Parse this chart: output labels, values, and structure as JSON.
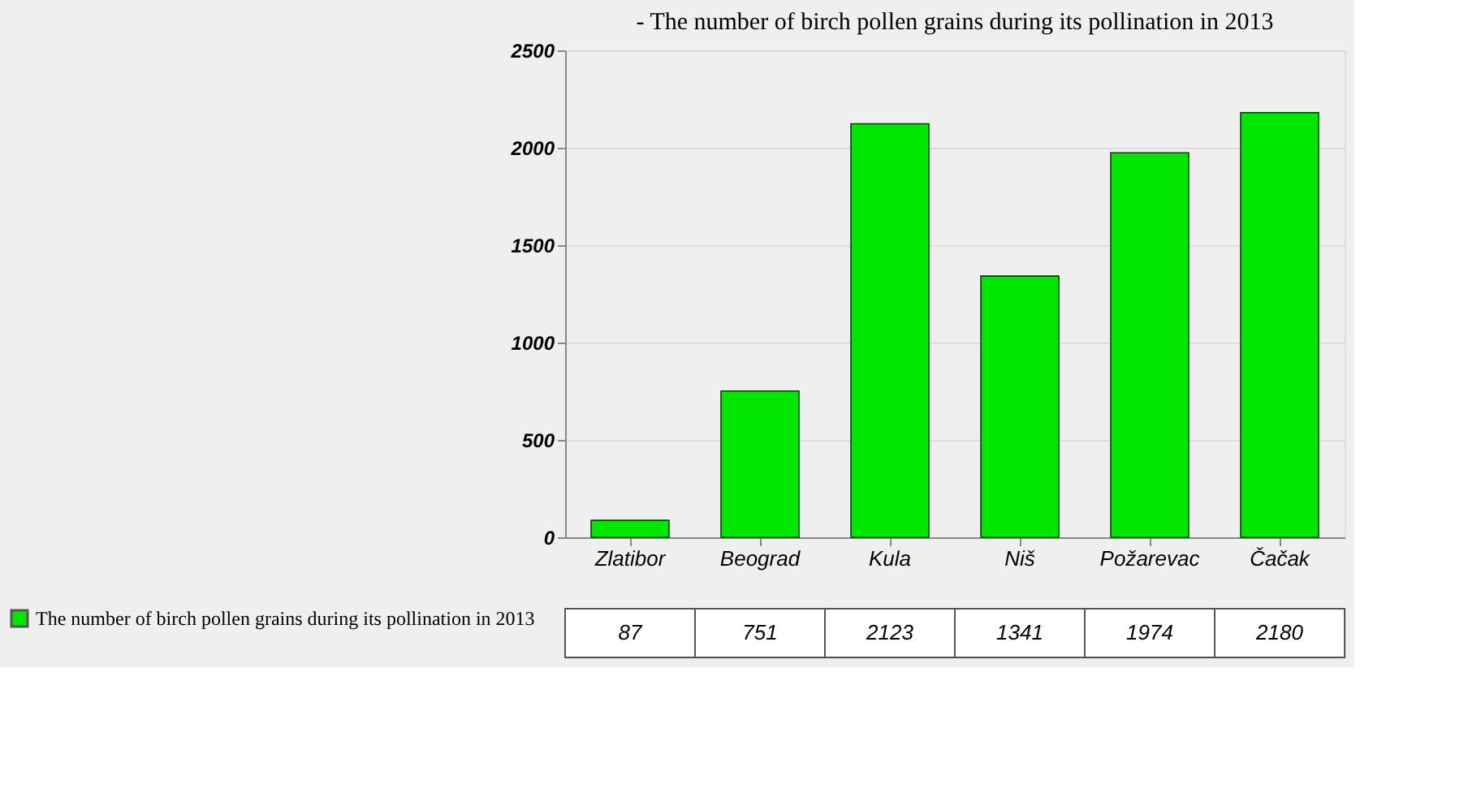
{
  "chart_data": {
    "type": "bar",
    "title": "-   The number of birch pollen grains during its pollination in 2013",
    "categories": [
      "Zlatibor",
      "Beograd",
      "Kula",
      "Niš",
      "Požarevac",
      "Čačak"
    ],
    "series": [
      {
        "name": "The number of birch pollen grains during its pollination in 2013",
        "color": "#00e600",
        "values": [
          87,
          751,
          2123,
          1341,
          1974,
          2180
        ]
      }
    ],
    "ylim": [
      0,
      2500
    ],
    "yticks": [
      0,
      500,
      {
        "value": 1000,
        "label": "1000"
      },
      {
        "value": 1500,
        "label": "1500"
      },
      {
        "value": 2000,
        "label": "2000"
      },
      {
        "value": 2500,
        "label": "2500"
      }
    ],
    "grid": "y",
    "data_labels": true,
    "legend": "bottom left"
  }
}
